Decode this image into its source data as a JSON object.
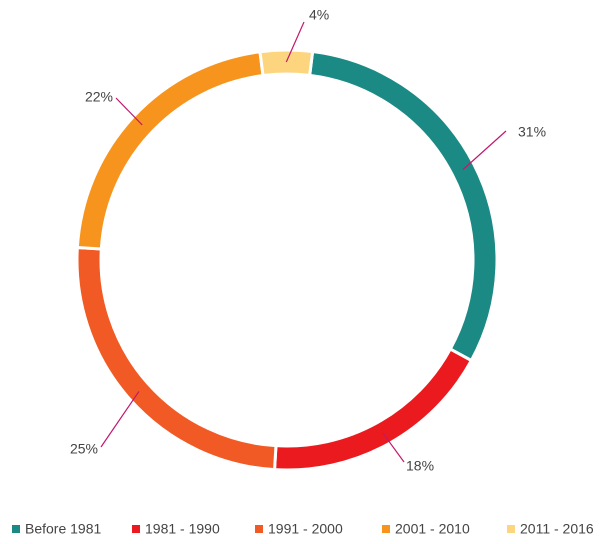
{
  "chart_data": {
    "type": "donut",
    "categories": [
      "Before 1981",
      "1981 - 1990",
      "1991 - 2000",
      "2001 - 2010",
      "2011 - 2016"
    ],
    "values": [
      31,
      18,
      25,
      22,
      4
    ],
    "value_labels": [
      "31%",
      "18%",
      "25%",
      "22%",
      "4%"
    ],
    "colors": [
      "#1b8a85",
      "#ea1a1f",
      "#f15a24",
      "#f7941e",
      "#fdd57e"
    ],
    "legend": "bottom"
  }
}
